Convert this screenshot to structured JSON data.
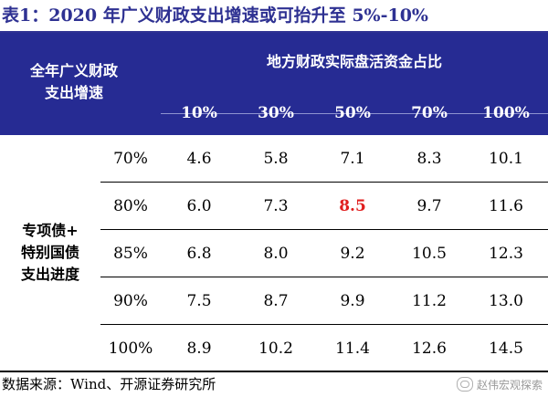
{
  "title": "表1：2020 年广义财政支出增速或可抬升至 5%-10%",
  "header": {
    "corner_label": "全年广义财政\n支出增速",
    "group_label": "地方财政实际盘活资金占比",
    "columns": [
      "10%",
      "30%",
      "50%",
      "70%",
      "100%"
    ]
  },
  "row_group_label": "专项债+\n特别国债\n支出进度",
  "rows": [
    {
      "rate": "70%",
      "values": [
        "4.6",
        "5.8",
        "7.1",
        "8.3",
        "10.1"
      ]
    },
    {
      "rate": "80%",
      "values": [
        "6.0",
        "7.3",
        "8.5",
        "9.7",
        "11.6"
      ]
    },
    {
      "rate": "85%",
      "values": [
        "6.8",
        "8.0",
        "9.2",
        "10.5",
        "12.3"
      ]
    },
    {
      "rate": "90%",
      "values": [
        "7.5",
        "8.7",
        "9.9",
        "11.2",
        "13.0"
      ]
    },
    {
      "rate": "100%",
      "values": [
        "8.9",
        "10.2",
        "11.4",
        "12.6",
        "14.5"
      ]
    }
  ],
  "highlight": {
    "row": 1,
    "col": 2,
    "color": "#e01e1e"
  },
  "source": "数据来源：Wind、开源证券研究所",
  "watermark": {
    "text": "赵伟宏观探索",
    "icon": "wechat-icon"
  },
  "colors": {
    "header_bg": "#262b93",
    "title": "#2e3192"
  }
}
